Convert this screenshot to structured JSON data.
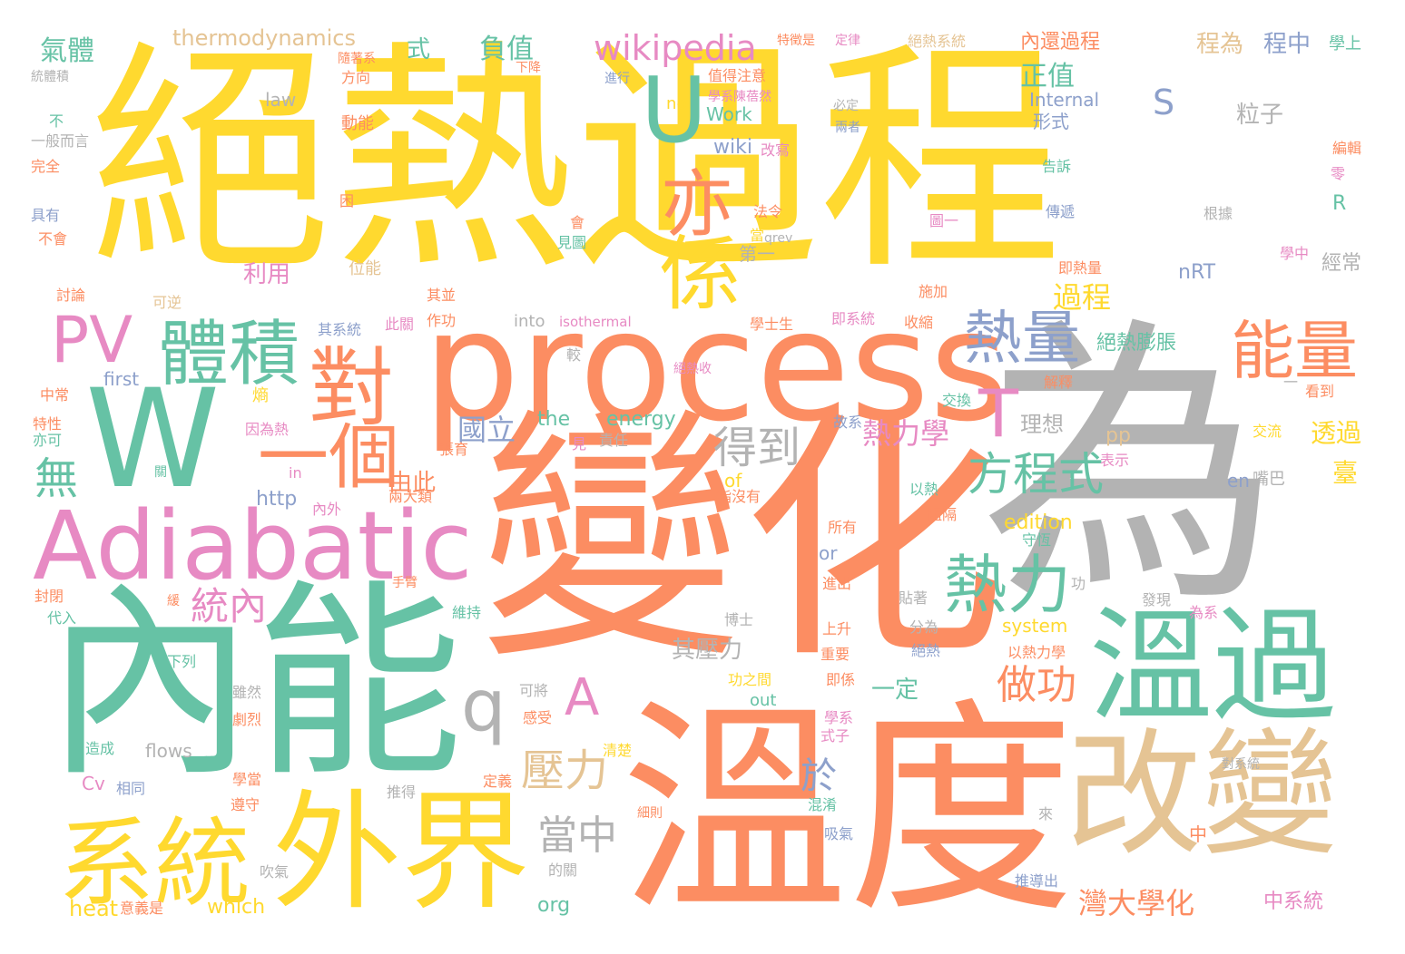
{
  "palette": {
    "yellow": "#ffd92f",
    "green": "#66c2a5",
    "orange": "#fc8d62",
    "gray": "#b3b3b3",
    "pink": "#e78ac3",
    "blue": "#8da0cb",
    "tan": "#e5c494",
    "lime": "#a6d854"
  },
  "words": [
    {
      "text": "絕熱過程",
      "color": "yellow"
    },
    {
      "text": "變化",
      "color": "orange"
    },
    {
      "text": "為",
      "color": "gray"
    },
    {
      "text": "內能",
      "color": "green"
    },
    {
      "text": "溫度",
      "color": "orange"
    },
    {
      "text": "process",
      "color": "orange"
    },
    {
      "text": "W",
      "color": "green"
    },
    {
      "text": "Adiabatic",
      "color": "pink"
    },
    {
      "text": "改變",
      "color": "tan"
    },
    {
      "text": "溫過",
      "color": "green"
    },
    {
      "text": "外界",
      "color": "yellow"
    },
    {
      "text": "系統",
      "color": "yellow"
    },
    {
      "text": "U",
      "color": "green"
    },
    {
      "text": "體積",
      "color": "green"
    },
    {
      "text": "PV",
      "color": "pink"
    },
    {
      "text": "對",
      "color": "orange"
    },
    {
      "text": "一個",
      "color": "orange"
    },
    {
      "text": "係",
      "color": "yellow"
    },
    {
      "text": "亦",
      "color": "orange"
    },
    {
      "text": "熱量",
      "color": "blue"
    },
    {
      "text": "能量",
      "color": "orange"
    },
    {
      "text": "熱力",
      "color": "green"
    },
    {
      "text": "T",
      "color": "pink"
    },
    {
      "text": "方程式",
      "color": "green"
    },
    {
      "text": "q",
      "color": "gray"
    },
    {
      "text": "A",
      "color": "pink"
    },
    {
      "text": "壓力",
      "color": "tan"
    },
    {
      "text": "得到",
      "color": "gray"
    },
    {
      "text": "做功",
      "color": "orange"
    },
    {
      "text": "無",
      "color": "green"
    },
    {
      "text": "統內",
      "color": "pink"
    },
    {
      "text": "當中",
      "color": "gray"
    },
    {
      "text": "於",
      "color": "blue"
    },
    {
      "text": "wikipedia",
      "color": "pink"
    },
    {
      "text": "熱力學",
      "color": "pink"
    },
    {
      "text": "過程",
      "color": "yellow"
    },
    {
      "text": "國立",
      "color": "blue"
    },
    {
      "text": "灣大學化",
      "color": "orange"
    },
    {
      "text": "S",
      "color": "blue"
    },
    {
      "text": "負值",
      "color": "green"
    },
    {
      "text": "氣體",
      "color": "green"
    },
    {
      "text": "正值",
      "color": "green"
    },
    {
      "text": "thermodynamics",
      "color": "tan"
    },
    {
      "text": "內還過程",
      "color": "orange"
    },
    {
      "text": "程為",
      "color": "tan"
    },
    {
      "text": "程中",
      "color": "blue"
    },
    {
      "text": "由此",
      "color": "orange"
    },
    {
      "text": "其壓力",
      "color": "gray"
    },
    {
      "text": "粒子",
      "color": "gray"
    },
    {
      "text": "絕熱膨脹",
      "color": "green"
    },
    {
      "text": "理想",
      "color": "gray"
    },
    {
      "text": "透過",
      "color": "yellow"
    },
    {
      "text": "臺",
      "color": "yellow"
    },
    {
      "text": "中系統",
      "color": "pink"
    },
    {
      "text": "一定",
      "color": "green"
    },
    {
      "text": "利用",
      "color": "pink"
    },
    {
      "text": "the",
      "color": "green"
    },
    {
      "text": "energy",
      "color": "green"
    },
    {
      "text": "edition",
      "color": "yellow"
    },
    {
      "text": "nRT",
      "color": "blue"
    },
    {
      "text": "pp",
      "color": "tan"
    },
    {
      "text": "http",
      "color": "blue"
    },
    {
      "text": "wiki",
      "color": "blue"
    },
    {
      "text": "Work",
      "color": "green"
    },
    {
      "text": "Internal",
      "color": "blue"
    },
    {
      "text": "org",
      "color": "green"
    },
    {
      "text": "heat",
      "color": "yellow"
    },
    {
      "text": "which",
      "color": "yellow"
    },
    {
      "text": "flows",
      "color": "gray"
    },
    {
      "text": "Cv",
      "color": "pink"
    },
    {
      "text": "first",
      "color": "blue"
    },
    {
      "text": "into",
      "color": "gray"
    },
    {
      "text": "isothermal",
      "color": "pink"
    },
    {
      "text": "system",
      "color": "yellow"
    },
    {
      "text": "out",
      "color": "green"
    },
    {
      "text": "law",
      "color": "gray"
    },
    {
      "text": "no",
      "color": "yellow"
    },
    {
      "text": "of",
      "color": "yellow"
    },
    {
      "text": "or",
      "color": "blue"
    },
    {
      "text": "in",
      "color": "pink"
    },
    {
      "text": "en",
      "color": "blue"
    },
    {
      "text": "R",
      "color": "green"
    },
    {
      "text": "式",
      "color": "green"
    },
    {
      "text": "形式",
      "color": "blue"
    },
    {
      "text": "第一",
      "color": "gray"
    },
    {
      "text": "經常",
      "color": "gray"
    },
    {
      "text": "熵",
      "color": "yellow"
    },
    {
      "text": "動能",
      "color": "orange"
    },
    {
      "text": "位能",
      "color": "tan"
    },
    {
      "text": "其系統",
      "color": "blue"
    },
    {
      "text": "即系統",
      "color": "pink"
    },
    {
      "text": "即熱量",
      "color": "orange"
    },
    {
      "text": "學中",
      "color": "pink"
    },
    {
      "text": "學上",
      "color": "green"
    },
    {
      "text": "交換",
      "color": "green"
    },
    {
      "text": "交流",
      "color": "yellow"
    },
    {
      "text": "表示",
      "color": "pink"
    },
    {
      "text": "嘴巴",
      "color": "gray"
    },
    {
      "text": "圖一",
      "color": "pink"
    },
    {
      "text": "根據",
      "color": "gray"
    },
    {
      "text": "傳遞",
      "color": "blue"
    },
    {
      "text": "告訴",
      "color": "green"
    },
    {
      "text": "施加",
      "color": "orange"
    },
    {
      "text": "看到",
      "color": "orange"
    },
    {
      "text": "解釋",
      "color": "orange"
    },
    {
      "text": "故系",
      "color": "blue"
    },
    {
      "text": "責任",
      "color": "gray"
    },
    {
      "text": "因為熱",
      "color": "pink"
    },
    {
      "text": "張育",
      "color": "orange"
    },
    {
      "text": "指沒有",
      "color": "orange"
    },
    {
      "text": "兩大類",
      "color": "orange"
    },
    {
      "text": "所有",
      "color": "orange"
    },
    {
      "text": "阻隔",
      "color": "orange"
    },
    {
      "text": "以熱",
      "color": "green"
    },
    {
      "text": "守恆",
      "color": "green"
    },
    {
      "text": "進出",
      "color": "orange"
    },
    {
      "text": "貼著",
      "color": "gray"
    },
    {
      "text": "分為",
      "color": "gray"
    },
    {
      "text": "以熱力學",
      "color": "orange"
    },
    {
      "text": "為系",
      "color": "pink"
    },
    {
      "text": "發現",
      "color": "gray"
    },
    {
      "text": "上升",
      "color": "orange"
    },
    {
      "text": "重要",
      "color": "orange"
    },
    {
      "text": "絕熱",
      "color": "blue"
    },
    {
      "text": "即係",
      "color": "orange"
    },
    {
      "text": "博士",
      "color": "gray"
    },
    {
      "text": "維持",
      "color": "green"
    },
    {
      "text": "功之間",
      "color": "yellow"
    },
    {
      "text": "學系",
      "color": "pink"
    },
    {
      "text": "式子",
      "color": "pink"
    },
    {
      "text": "可將",
      "color": "gray"
    },
    {
      "text": "感受",
      "color": "orange"
    },
    {
      "text": "清楚",
      "color": "yellow"
    },
    {
      "text": "推得",
      "color": "gray"
    },
    {
      "text": "細則",
      "color": "orange"
    },
    {
      "text": "混淆",
      "color": "green"
    },
    {
      "text": "吸氣",
      "color": "blue"
    },
    {
      "text": "的關",
      "color": "gray"
    },
    {
      "text": "吹氣",
      "color": "gray"
    },
    {
      "text": "遵守",
      "color": "orange"
    },
    {
      "text": "定義",
      "color": "orange"
    },
    {
      "text": "學當",
      "color": "orange"
    },
    {
      "text": "相同",
      "color": "blue"
    },
    {
      "text": "造成",
      "color": "green"
    },
    {
      "text": "劇烈",
      "color": "orange"
    },
    {
      "text": "雖然",
      "color": "gray"
    },
    {
      "text": "下列",
      "color": "green"
    },
    {
      "text": "代入",
      "color": "green"
    },
    {
      "text": "封閉",
      "color": "orange"
    },
    {
      "text": "內外",
      "color": "pink"
    },
    {
      "text": "作功",
      "color": "orange"
    },
    {
      "text": "其並",
      "color": "orange"
    },
    {
      "text": "可逆",
      "color": "tan"
    },
    {
      "text": "討論",
      "color": "orange"
    },
    {
      "text": "中常",
      "color": "orange"
    },
    {
      "text": "特性",
      "color": "orange"
    },
    {
      "text": "亦可",
      "color": "green"
    },
    {
      "text": "此關",
      "color": "pink"
    },
    {
      "text": "學士生",
      "color": "orange"
    },
    {
      "text": "收縮",
      "color": "orange"
    },
    {
      "text": "絕熱收",
      "color": "pink"
    },
    {
      "text": "較",
      "color": "gray"
    },
    {
      "text": "法令",
      "color": "orange"
    },
    {
      "text": "當",
      "color": "yellow"
    },
    {
      "text": "見圖",
      "color": "green"
    },
    {
      "text": "會",
      "color": "orange"
    },
    {
      "text": "改寫",
      "color": "pink"
    },
    {
      "text": "困",
      "color": "orange"
    },
    {
      "text": "具有",
      "color": "blue"
    },
    {
      "text": "不會",
      "color": "orange"
    },
    {
      "text": "完全",
      "color": "orange"
    },
    {
      "text": "不",
      "color": "green"
    },
    {
      "text": "一般而言",
      "color": "gray"
    },
    {
      "text": "統體積",
      "color": "gray"
    },
    {
      "text": "隨著系",
      "color": "orange"
    },
    {
      "text": "方向",
      "color": "orange"
    },
    {
      "text": "下降",
      "color": "orange"
    },
    {
      "text": "進行",
      "color": "blue"
    },
    {
      "text": "值得注意",
      "color": "orange"
    },
    {
      "text": "學系陳蓓然",
      "color": "pink"
    },
    {
      "text": "特徵是",
      "color": "orange"
    },
    {
      "text": "定律",
      "color": "pink"
    },
    {
      "text": "絕熱系統",
      "color": "tan"
    },
    {
      "text": "必定",
      "color": "gray"
    },
    {
      "text": "兩者",
      "color": "blue"
    },
    {
      "text": "編輯",
      "color": "orange"
    },
    {
      "text": "零",
      "color": "pink"
    },
    {
      "text": "qrev",
      "color": "gray"
    },
    {
      "text": "一",
      "color": "gray"
    },
    {
      "text": "見",
      "color": "pink"
    },
    {
      "text": "功",
      "color": "gray"
    },
    {
      "text": "手臂",
      "color": "orange"
    },
    {
      "text": "關",
      "color": "green"
    },
    {
      "text": "緩",
      "color": "orange"
    },
    {
      "text": "意義是",
      "color": "orange"
    },
    {
      "text": "來",
      "color": "gray"
    },
    {
      "text": "推導出",
      "color": "blue"
    },
    {
      "text": "對系統",
      "color": "gray"
    },
    {
      "text": "中",
      "color": "orange"
    }
  ]
}
